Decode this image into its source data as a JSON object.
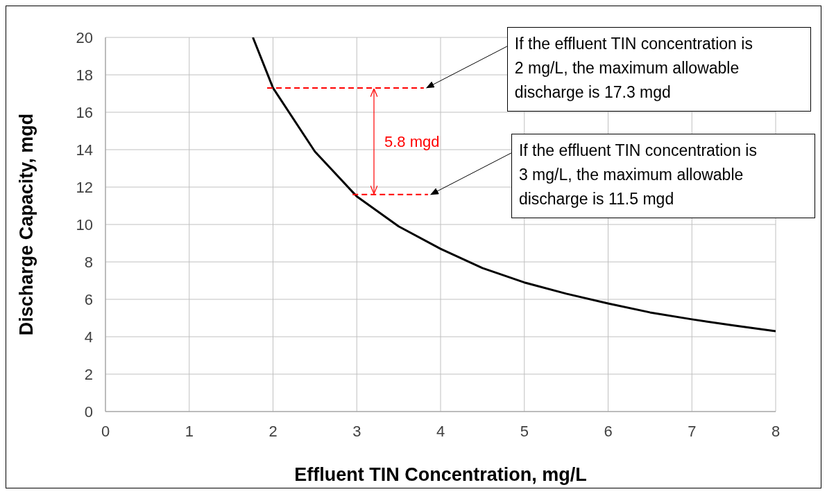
{
  "chart_data": {
    "type": "line",
    "xlabel": "Effluent TIN Concentration, mg/L",
    "ylabel": "Discharge Capacity, mgd",
    "xlim": [
      0,
      8
    ],
    "ylim": [
      0,
      20
    ],
    "xticks": [
      0,
      1,
      2,
      3,
      4,
      5,
      6,
      7,
      8
    ],
    "yticks": [
      0,
      2,
      4,
      6,
      8,
      10,
      12,
      14,
      16,
      18,
      20
    ],
    "grid": true,
    "marker": "none",
    "series": [
      {
        "color": "#000000",
        "line_style": "solid",
        "x": [
          1.76,
          2,
          2.5,
          3,
          3.5,
          4,
          4.5,
          5,
          5.5,
          6,
          6.5,
          7,
          7.5,
          8
        ],
        "values": [
          20,
          17.3,
          13.9,
          11.5,
          9.9,
          8.7,
          7.67,
          6.9,
          6.3,
          5.78,
          5.3,
          4.93,
          4.6,
          4.3
        ]
      },
      {
        "color": "#ff0000",
        "line_style": "dashed",
        "x": [
          1.93,
          3.8
        ],
        "values": [
          17.3,
          17.3
        ]
      },
      {
        "color": "#ff0000",
        "line_style": "dashed",
        "x": [
          2.95,
          3.85
        ],
        "values": [
          11.6,
          11.6
        ]
      }
    ],
    "annotations": [
      {
        "text": "If the effluent TIN concentration is 2 mg/L, the maximum allowable discharge is 17.3 mgd",
        "x": 3.8,
        "y": 17.3
      },
      {
        "text": "If the effluent TIN concentration is 3 mg/L, the maximum allowable discharge is 11.5 mgd",
        "x": 3.85,
        "y": 11.6
      },
      "5.8 mgd"
    ]
  }
}
